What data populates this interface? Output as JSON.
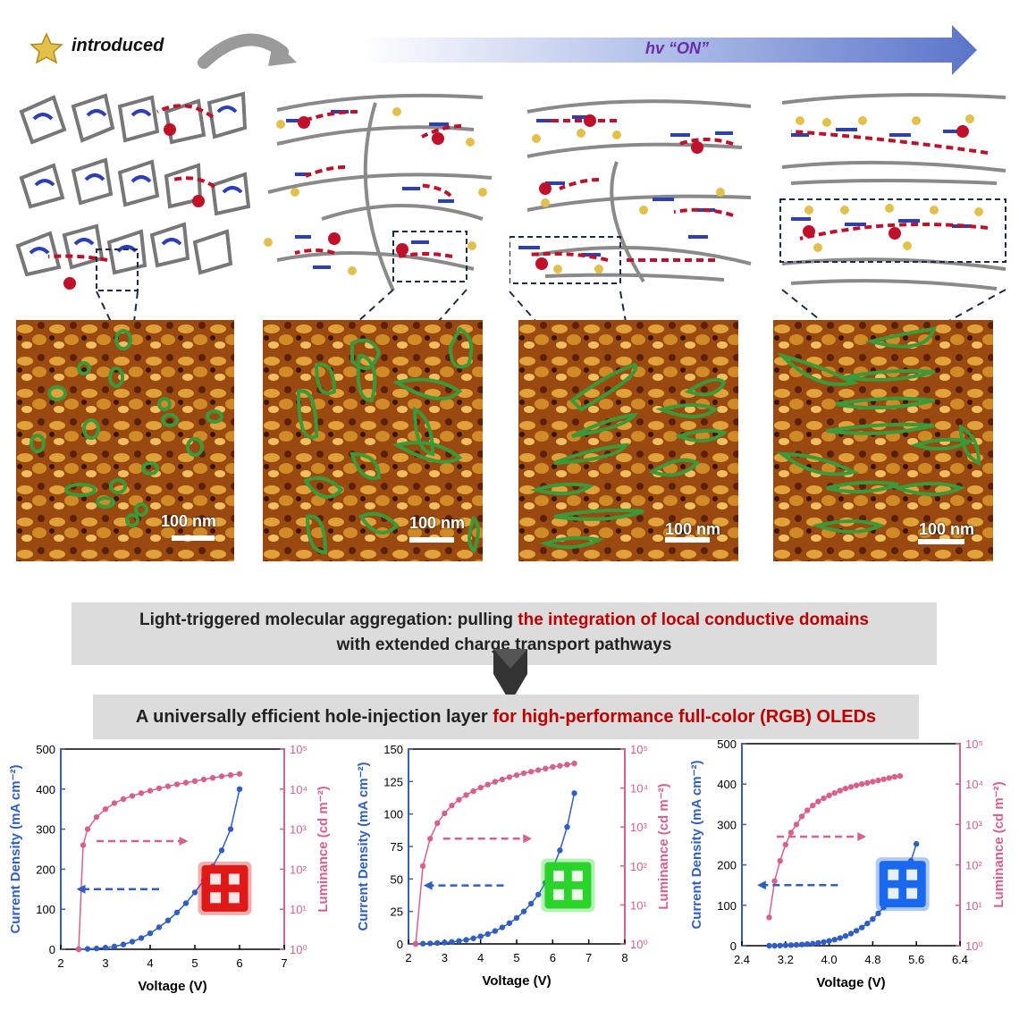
{
  "header": {
    "legend_label": "introduced",
    "arrow_label_italic": "hv",
    "arrow_label_quote": "“ON”"
  },
  "afm": {
    "scale_label": "100 nm",
    "panels": [
      {
        "name": "afm-panel-1"
      },
      {
        "name": "afm-panel-2"
      },
      {
        "name": "afm-panel-3"
      },
      {
        "name": "afm-panel-4"
      }
    ]
  },
  "summary": {
    "line1_black": "Light-triggered molecular aggregation: pulling ",
    "line1_red": "the integration of local conductive domains",
    "line2": "with extended charge transport pathways",
    "box2_black": "A universally efficient hole-injection layer ",
    "box2_red": "for high-performance full-color (RGB) OLEDs"
  },
  "colors": {
    "current": "#2f5fc4",
    "luminance": "#d9608a",
    "red_text": "#c00000",
    "purple": "#6a2ca8"
  },
  "chart_data": [
    {
      "type": "line",
      "device": "red",
      "xlabel": "Voltage (V)",
      "ylabel_left": "Current Density (mA cm⁻²)",
      "ylabel_right": "Luminance (cd m⁻²)",
      "xlim": [
        2,
        7
      ],
      "xticks": [
        "2",
        "3",
        "4",
        "5",
        "6",
        "7"
      ],
      "ylim_left": [
        0,
        500
      ],
      "yticks_left": [
        "0",
        "100",
        "200",
        "300",
        "400",
        "500"
      ],
      "ylim_right_log": [
        0,
        5
      ],
      "yticks_right": [
        "10⁰",
        "10¹",
        "10²",
        "10³",
        "10⁴",
        "10⁵"
      ],
      "series": [
        {
          "axis": "left",
          "x": [
            2.4,
            2.6,
            2.8,
            3.0,
            3.2,
            3.4,
            3.6,
            3.8,
            4.0,
            4.2,
            4.4,
            4.6,
            4.8,
            5.0,
            5.2,
            5.4,
            5.6,
            5.8,
            6.0
          ],
          "values": [
            0,
            1,
            2,
            4,
            7,
            12,
            19,
            28,
            40,
            55,
            72,
            92,
            115,
            142,
            172,
            207,
            247,
            300,
            400
          ]
        },
        {
          "axis": "right",
          "x": [
            2.4,
            2.5,
            2.6,
            2.8,
            3.0,
            3.2,
            3.4,
            3.6,
            3.8,
            4.0,
            4.2,
            4.4,
            4.6,
            4.8,
            5.0,
            5.2,
            5.4,
            5.6,
            5.8,
            6.0
          ],
          "values": [
            0,
            2.6,
            3.0,
            3.3,
            3.5,
            3.65,
            3.75,
            3.83,
            3.9,
            3.96,
            4.02,
            4.07,
            4.12,
            4.16,
            4.2,
            4.24,
            4.28,
            4.32,
            4.35,
            4.38
          ]
        }
      ]
    },
    {
      "type": "line",
      "device": "green",
      "xlabel": "Voltage (V)",
      "ylabel_left": "Current Density (mA cm⁻²)",
      "ylabel_right": "Luminance (cd m⁻²)",
      "xlim": [
        2,
        8
      ],
      "xticks": [
        "2",
        "3",
        "4",
        "5",
        "6",
        "7",
        "8"
      ],
      "ylim_left": [
        0,
        150
      ],
      "yticks_left": [
        "0",
        "25",
        "50",
        "75",
        "100",
        "125",
        "150"
      ],
      "ylim_right_log": [
        0,
        5
      ],
      "yticks_right": [
        "10⁰",
        "10¹",
        "10²",
        "10³",
        "10⁴",
        "10⁵"
      ],
      "series": [
        {
          "axis": "left",
          "x": [
            2.2,
            2.4,
            2.6,
            2.8,
            3.0,
            3.2,
            3.4,
            3.6,
            3.8,
            4.0,
            4.2,
            4.4,
            4.6,
            4.8,
            5.0,
            5.2,
            5.4,
            5.6,
            5.8,
            6.0,
            6.2,
            6.4,
            6.6
          ],
          "values": [
            0,
            0.2,
            0.4,
            0.7,
            1,
            1.5,
            2.2,
            3.1,
            4.3,
            5.8,
            7.6,
            9.9,
            12.7,
            16,
            20,
            25,
            31,
            38,
            47,
            58,
            72,
            90,
            116
          ]
        },
        {
          "axis": "right",
          "x": [
            2.2,
            2.4,
            2.6,
            2.8,
            3.0,
            3.2,
            3.4,
            3.6,
            3.8,
            4.0,
            4.2,
            4.4,
            4.6,
            4.8,
            5.0,
            5.2,
            5.4,
            5.6,
            5.8,
            6.0,
            6.2,
            6.4,
            6.6
          ],
          "values": [
            0,
            2.0,
            2.7,
            3.1,
            3.35,
            3.55,
            3.7,
            3.82,
            3.92,
            4.01,
            4.09,
            4.16,
            4.22,
            4.28,
            4.33,
            4.38,
            4.42,
            4.46,
            4.5,
            4.54,
            4.57,
            4.6,
            4.63
          ]
        }
      ]
    },
    {
      "type": "line",
      "device": "blue",
      "xlabel": "Voltage (V)",
      "ylabel_left": "Current Density (mA cm⁻²)",
      "ylabel_right": "Luminance (cd m⁻²)",
      "xlim": [
        2.4,
        6.4
      ],
      "xticks": [
        "2.4",
        "3.2",
        "4.0",
        "4.8",
        "5.6",
        "6.4"
      ],
      "ylim_left": [
        0,
        500
      ],
      "yticks_left": [
        "0",
        "100",
        "200",
        "300",
        "400",
        "500"
      ],
      "ylim_right_log": [
        0,
        5
      ],
      "yticks_right": [
        "10⁰",
        "10¹",
        "10²",
        "10³",
        "10⁴",
        "10⁵"
      ],
      "series": [
        {
          "axis": "left",
          "x": [
            2.9,
            3.0,
            3.1,
            3.2,
            3.3,
            3.4,
            3.5,
            3.6,
            3.7,
            3.8,
            3.9,
            4.0,
            4.1,
            4.2,
            4.3,
            4.4,
            4.5,
            4.6,
            4.7,
            4.8,
            4.9,
            5.0,
            5.1,
            5.2,
            5.3,
            5.4,
            5.5,
            5.6
          ],
          "values": [
            0,
            0,
            0.5,
            1,
            1.5,
            2,
            3,
            4,
            5,
            7,
            9,
            12,
            15,
            19,
            24,
            30,
            37,
            45,
            55,
            66,
            80,
            95,
            112,
            132,
            155,
            180,
            210,
            252
          ]
        },
        {
          "axis": "right",
          "x": [
            2.9,
            3.0,
            3.1,
            3.2,
            3.3,
            3.4,
            3.5,
            3.6,
            3.7,
            3.8,
            3.9,
            4.0,
            4.1,
            4.2,
            4.3,
            4.4,
            4.5,
            4.6,
            4.7,
            4.8,
            4.9,
            5.0,
            5.1,
            5.2,
            5.3
          ],
          "values": [
            0.7,
            1.6,
            2.1,
            2.5,
            2.8,
            3.0,
            3.2,
            3.35,
            3.47,
            3.57,
            3.65,
            3.72,
            3.78,
            3.84,
            3.89,
            3.93,
            3.97,
            4.0,
            4.03,
            4.06,
            4.09,
            4.12,
            4.15,
            4.18,
            4.2
          ]
        }
      ]
    }
  ]
}
